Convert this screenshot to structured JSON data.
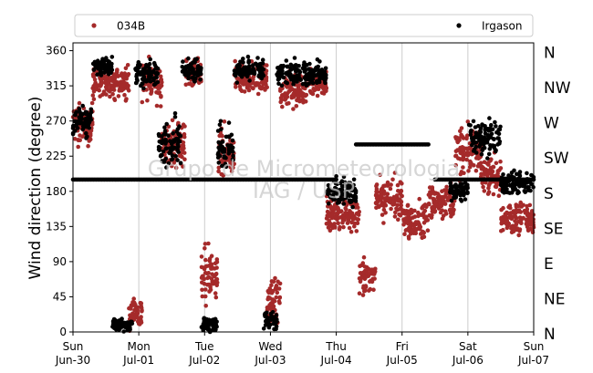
{
  "chart_data": {
    "type": "scatter",
    "title": "",
    "xlabel": "",
    "ylabel": "Wind direction (degree)",
    "ylim": [
      0,
      370
    ],
    "yticks": [
      0,
      45,
      90,
      135,
      180,
      225,
      270,
      315,
      360
    ],
    "xlim_days": [
      0,
      7
    ],
    "grid": "vertical lines at day boundaries",
    "legend_position": "top, above plot",
    "x_tick_labels": [
      {
        "day": 0,
        "weekday": "Sun",
        "date": "Jun-30"
      },
      {
        "day": 1,
        "weekday": "Mon",
        "date": "Jul-01"
      },
      {
        "day": 2,
        "weekday": "Tue",
        "date": "Jul-02"
      },
      {
        "day": 3,
        "weekday": "Wed",
        "date": "Jul-03"
      },
      {
        "day": 4,
        "weekday": "Thu",
        "date": "Jul-04"
      },
      {
        "day": 5,
        "weekday": "Fri",
        "date": "Jul-05"
      },
      {
        "day": 6,
        "weekday": "Sat",
        "date": "Jul-06"
      },
      {
        "day": 7,
        "weekday": "Sun",
        "date": "Jul-07"
      }
    ],
    "compass_labels": [
      {
        "deg": 0,
        "label": "N"
      },
      {
        "deg": 45,
        "label": "NE"
      },
      {
        "deg": 90,
        "label": "E"
      },
      {
        "deg": 135,
        "label": "SE"
      },
      {
        "deg": 180,
        "label": "S"
      },
      {
        "deg": 225,
        "label": "SW"
      },
      {
        "deg": 270,
        "label": "W"
      },
      {
        "deg": 315,
        "label": "NW"
      },
      {
        "deg": 360,
        "label": "N"
      }
    ],
    "watermark": [
      "Grupo de Micrometeorologia",
      "IAG / USP"
    ],
    "series": [
      {
        "name": "034B",
        "color": "#a52a2a",
        "segments": [
          {
            "from": 0.0,
            "to": 0.3,
            "center": 265,
            "spread": 35
          },
          {
            "from": 0.3,
            "to": 0.85,
            "center": 320,
            "spread": 30
          },
          {
            "from": 0.85,
            "to": 1.05,
            "center": 25,
            "spread": 30
          },
          {
            "from": 1.05,
            "to": 1.35,
            "center": 320,
            "spread": 35
          },
          {
            "from": 1.35,
            "to": 1.7,
            "center": 240,
            "spread": 40
          },
          {
            "from": 1.7,
            "to": 1.95,
            "center": 330,
            "spread": 25
          },
          {
            "from": 1.95,
            "to": 2.2,
            "center": 70,
            "spread": 50
          },
          {
            "from": 2.2,
            "to": 2.45,
            "center": 230,
            "spread": 45
          },
          {
            "from": 2.45,
            "to": 2.95,
            "center": 325,
            "spread": 25
          },
          {
            "from": 2.95,
            "to": 3.15,
            "center": 40,
            "spread": 40
          },
          {
            "from": 3.15,
            "to": 3.55,
            "center": 310,
            "spread": 30
          },
          {
            "from": 3.55,
            "to": 3.85,
            "center": 320,
            "spread": 25
          },
          {
            "from": 3.85,
            "to": 4.35,
            "center": 150,
            "spread": 30
          },
          {
            "from": 4.35,
            "to": 4.6,
            "center": 70,
            "spread": 25
          },
          {
            "from": 4.6,
            "to": 5.0,
            "center": 170,
            "spread": 35
          },
          {
            "from": 5.0,
            "to": 5.4,
            "center": 145,
            "spread": 30
          },
          {
            "from": 5.4,
            "to": 5.8,
            "center": 165,
            "spread": 30
          },
          {
            "from": 5.8,
            "to": 6.2,
            "center": 230,
            "spread": 40
          },
          {
            "from": 6.2,
            "to": 6.5,
            "center": 200,
            "spread": 30
          },
          {
            "from": 6.5,
            "to": 7.0,
            "center": 145,
            "spread": 30
          }
        ]
      },
      {
        "name": "Irgason",
        "color": "#000000",
        "segments": [
          {
            "from": 0.0,
            "to": 0.3,
            "center": 270,
            "spread": 25
          },
          {
            "from": 0.3,
            "to": 0.6,
            "center": 340,
            "spread": 15
          },
          {
            "from": 0.6,
            "to": 0.9,
            "center": 10,
            "spread": 12
          },
          {
            "from": 0.95,
            "to": 1.3,
            "center": 330,
            "spread": 20
          },
          {
            "from": 1.3,
            "to": 1.65,
            "center": 240,
            "spread": 40
          },
          {
            "from": 1.65,
            "to": 1.95,
            "center": 335,
            "spread": 20
          },
          {
            "from": 1.95,
            "to": 2.2,
            "center": 10,
            "spread": 15
          },
          {
            "from": 2.2,
            "to": 2.45,
            "center": 235,
            "spread": 45
          },
          {
            "from": 2.45,
            "to": 2.9,
            "center": 335,
            "spread": 20
          },
          {
            "from": 2.9,
            "to": 3.1,
            "center": 15,
            "spread": 15
          },
          {
            "from": 3.1,
            "to": 3.85,
            "center": 330,
            "spread": 20
          },
          {
            "from": 3.85,
            "to": 4.3,
            "center": 180,
            "spread": 25
          },
          {
            "from": 5.7,
            "to": 6.0,
            "center": 180,
            "spread": 15
          },
          {
            "from": 6.0,
            "to": 6.5,
            "center": 250,
            "spread": 30
          },
          {
            "from": 6.5,
            "to": 7.0,
            "center": 190,
            "spread": 20
          }
        ],
        "flat_lines": [
          {
            "from": 0.0,
            "to": 4.0,
            "value": 195
          },
          {
            "from": 4.3,
            "to": 5.4,
            "value": 240
          },
          {
            "from": 5.5,
            "to": 7.0,
            "value": 195
          }
        ]
      }
    ]
  }
}
